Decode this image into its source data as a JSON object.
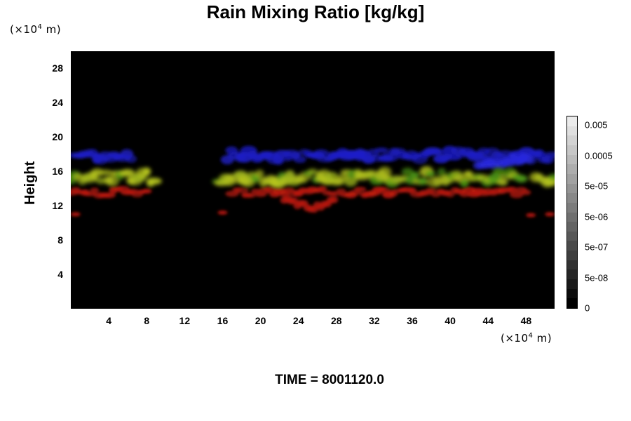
{
  "chart_data": {
    "type": "heatmap",
    "title": "Rain Mixing Ratio [kg/kg]",
    "ylabel": "Height",
    "y_unit": "(×10⁴ m)",
    "x_unit": "(×10⁴ m)",
    "y_ticks": [
      "4",
      "8",
      "12",
      "16",
      "20",
      "24",
      "28"
    ],
    "x_ticks": [
      "4",
      "8",
      "12",
      "16",
      "20",
      "24",
      "28",
      "32",
      "36",
      "40",
      "44",
      "48"
    ],
    "xlim": [
      0,
      51
    ],
    "ylim": [
      0,
      30
    ],
    "colorbar_labels": [
      "0.005",
      "0.0005",
      "5e-05",
      "5e-06",
      "5e-07",
      "5e-08",
      "0"
    ],
    "time_label": "TIME = 8001120.0",
    "grid": false,
    "colors": {
      "background": "#000000",
      "upper_layer": "#1d1dc8",
      "middle_layer": "#9fb71c",
      "lower_layer": "#c21a10"
    }
  }
}
